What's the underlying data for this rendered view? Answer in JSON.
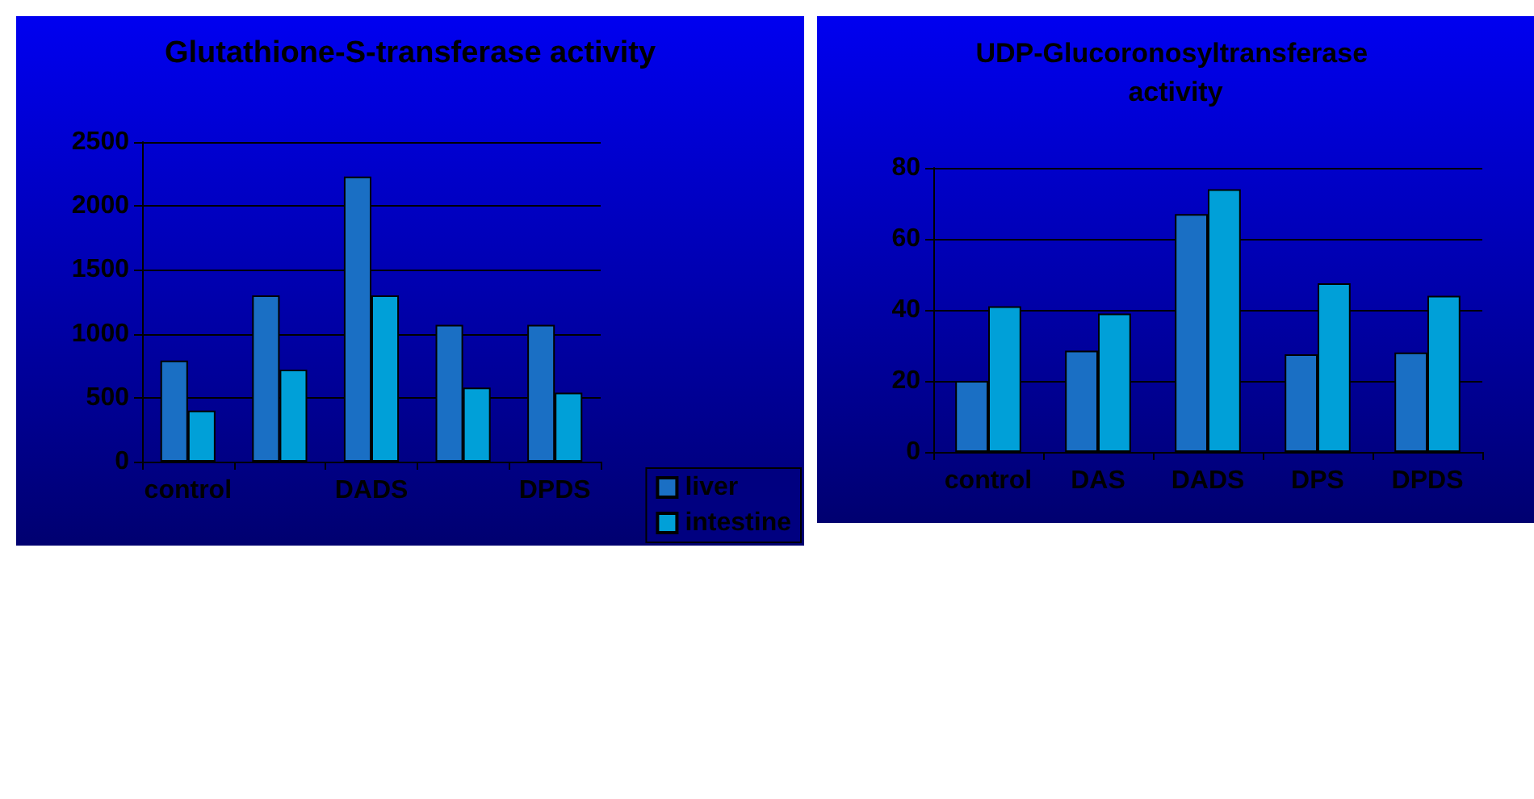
{
  "chart_data": [
    {
      "type": "bar",
      "title": "Glutathione-S-transferase activity",
      "categories": [
        "control",
        null,
        "DADS",
        null,
        "DPDS"
      ],
      "series": [
        {
          "name": "liver",
          "color": "#1a6fc4",
          "values": [
            790,
            1300,
            2230,
            1070,
            1070
          ]
        },
        {
          "name": "intestine",
          "color": "#00a0d8",
          "values": [
            400,
            720,
            1300,
            580,
            540
          ]
        }
      ],
      "ylim": [
        0,
        2500
      ],
      "yticks": [
        0,
        500,
        1000,
        1500,
        2000,
        2500
      ],
      "grid": "y",
      "legend": "bottom right"
    },
    {
      "type": "bar",
      "title": "UDP-Glucoronosyltransferase activity",
      "categories": [
        "control",
        "DAS",
        "DADS",
        "DPS",
        "DPDS"
      ],
      "series": [
        {
          "color": "#1a6fc4",
          "values": [
            20,
            28.5,
            67,
            27.5,
            28
          ]
        },
        {
          "color": "#00a0d8",
          "values": [
            41,
            39,
            74,
            47.5,
            44
          ]
        }
      ],
      "ylim": [
        0,
        80
      ],
      "yticks": [
        0,
        20,
        40,
        60,
        80
      ],
      "grid": "y"
    }
  ]
}
